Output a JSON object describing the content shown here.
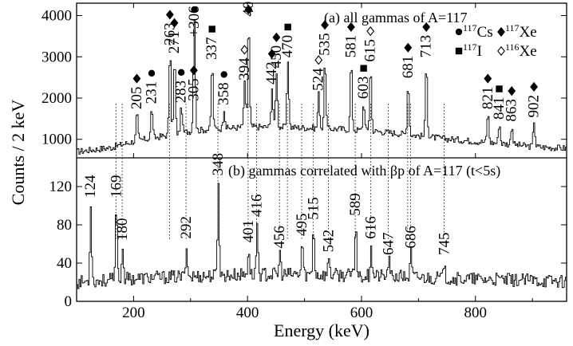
{
  "chart_data": {
    "type": "line",
    "xlabel": "Energy (keV)",
    "ylabel": "Counts / 2 keV",
    "x_range": [
      100,
      960
    ],
    "x_ticks": [
      200,
      400,
      600,
      800
    ],
    "panels": [
      {
        "id": "a",
        "title": "(a) all gammas of A=117",
        "y_range": [
          550,
          4300
        ],
        "y_ticks": [
          1000,
          2000,
          3000,
          4000
        ],
        "baseline": [
          [
            100,
            700
          ],
          [
            160,
            800
          ],
          [
            200,
            950
          ],
          [
            260,
            1100
          ],
          [
            300,
            1200
          ],
          [
            340,
            1250
          ],
          [
            400,
            1300
          ],
          [
            450,
            1300
          ],
          [
            500,
            1280
          ],
          [
            560,
            1250
          ],
          [
            620,
            1200
          ],
          [
            680,
            1120
          ],
          [
            740,
            1020
          ],
          [
            800,
            950
          ],
          [
            860,
            880
          ],
          [
            900,
            820
          ],
          [
            960,
            780
          ]
        ],
        "peaks": [
          {
            "e": 205,
            "label": "205",
            "h": 1650,
            "m": "diamond-filled"
          },
          {
            "e": 231,
            "label": "231",
            "h": 1780,
            "m": "dot"
          },
          {
            "e": 263,
            "label": "263",
            "h": 3200,
            "m": "diamond-filled"
          },
          {
            "e": 271,
            "label": "271",
            "h": 3000,
            "m": "diamond-filled"
          },
          {
            "e": 283,
            "label": "283",
            "h": 1800,
            "m": "dot"
          },
          {
            "e": 305,
            "label": "305",
            "h": 1850,
            "m": "diamond-filled"
          },
          {
            "e": 306,
            "label": "+306",
            "h": 3400,
            "m": "dot"
          },
          {
            "e": 337,
            "label": "337",
            "h": 2850,
            "m": "square"
          },
          {
            "e": 358,
            "label": "358",
            "h": 1750,
            "m": "dot"
          },
          {
            "e": 394,
            "label": "394",
            "h": 2350,
            "m": "diamond-open"
          },
          {
            "e": 401,
            "label": "401",
            "h": 3900,
            "m": "diamond-filled"
          },
          {
            "e": 442,
            "label": "442",
            "h": 2250,
            "m": "diamond-filled"
          },
          {
            "e": 450,
            "label": "450",
            "h": 2650,
            "m": "diamond-filled"
          },
          {
            "e": 470,
            "label": "470",
            "h": 2900,
            "m": "square"
          },
          {
            "e": 524,
            "label": "524",
            "h": 2100,
            "m": "diamond-open"
          },
          {
            "e": 535,
            "label": "535",
            "h": 2950,
            "m": "diamond-filled"
          },
          {
            "e": 581,
            "label": "581",
            "h": 2900,
            "m": "diamond-filled"
          },
          {
            "e": 603,
            "label": "603",
            "h": 1900,
            "m": "square"
          },
          {
            "e": 615,
            "label": "615",
            "h": 2800,
            "m": "diamond-open"
          },
          {
            "e": 681,
            "label": "681",
            "h": 2400,
            "m": "diamond-filled"
          },
          {
            "e": 713,
            "label": "713",
            "h": 2900,
            "m": "diamond-filled"
          },
          {
            "e": 821,
            "label": "821",
            "h": 1650,
            "m": "diamond-filled"
          },
          {
            "e": 841,
            "label": "841",
            "h": 1400,
            "m": "square"
          },
          {
            "e": 863,
            "label": "863",
            "h": 1350,
            "m": "diamond-filled"
          },
          {
            "e": 902,
            "label": "902",
            "h": 1450,
            "m": "diamond-filled"
          }
        ],
        "legend": [
          {
            "marker": "dot",
            "mass": "117",
            "element": "Cs"
          },
          {
            "marker": "diamond-filled",
            "mass": "117",
            "element": "Xe"
          },
          {
            "marker": "square",
            "mass": "117",
            "element": "I"
          },
          {
            "marker": "diamond-open",
            "mass": "116",
            "element": "Xe"
          }
        ]
      },
      {
        "id": "b",
        "title": "(b) gammas correlated with βp of A=117 (t<5s)",
        "y_range": [
          0,
          150
        ],
        "y_ticks": [
          0,
          40,
          80,
          120
        ],
        "baseline": [
          [
            100,
            20
          ],
          [
            200,
            24
          ],
          [
            300,
            26
          ],
          [
            400,
            28
          ],
          [
            500,
            28
          ],
          [
            600,
            27
          ],
          [
            700,
            25
          ],
          [
            800,
            23
          ],
          [
            960,
            21
          ]
        ],
        "peaks": [
          {
            "e": 124,
            "label": "124",
            "h": 105
          },
          {
            "e": 169,
            "label": "169",
            "h": 105
          },
          {
            "e": 180,
            "label": "180",
            "h": 60
          },
          {
            "e": 292,
            "label": "292",
            "h": 62
          },
          {
            "e": 348,
            "label": "348",
            "h": 128
          },
          {
            "e": 401,
            "label": "401",
            "h": 58
          },
          {
            "e": 416,
            "label": "416",
            "h": 85
          },
          {
            "e": 456,
            "label": "456",
            "h": 52
          },
          {
            "e": 495,
            "label": "495",
            "h": 65
          },
          {
            "e": 515,
            "label": "515",
            "h": 82
          },
          {
            "e": 542,
            "label": "542",
            "h": 48
          },
          {
            "e": 589,
            "label": "589",
            "h": 86
          },
          {
            "e": 616,
            "label": "616",
            "h": 62
          },
          {
            "e": 647,
            "label": "647",
            "h": 45
          },
          {
            "e": 686,
            "label": "686",
            "h": 52
          },
          {
            "e": 745,
            "label": "745",
            "h": 45
          }
        ]
      }
    ],
    "guide_lines_keV": [
      169,
      180,
      263,
      292,
      348,
      401,
      416,
      456,
      470,
      495,
      515,
      542,
      589,
      616,
      647,
      681,
      686,
      745
    ]
  }
}
